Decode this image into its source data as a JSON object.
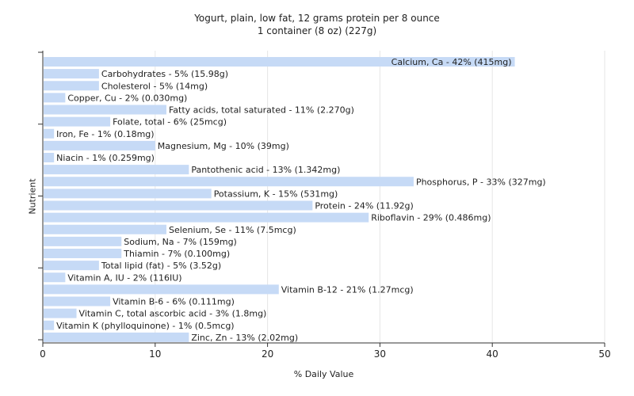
{
  "chart_data": {
    "type": "bar",
    "orientation": "horizontal",
    "title": "Yogurt, plain, low fat, 12 grams protein per 8 ounce",
    "subtitle": "1 container (8 oz) (227g)",
    "xlabel": "% Daily Value",
    "ylabel": "Nutrient",
    "xlim": [
      0,
      50
    ],
    "xticks": [
      "0",
      "10",
      "20",
      "30",
      "40",
      "50"
    ],
    "grid": true,
    "bar_color": "#c6daf6",
    "categories": [
      "Calcium, Ca",
      "Carbohydrates",
      "Cholesterol",
      "Copper, Cu",
      "Fatty acids, total saturated",
      "Folate, total",
      "Iron, Fe",
      "Magnesium, Mg",
      "Niacin",
      "Pantothenic acid",
      "Phosphorus, P",
      "Potassium, K",
      "Protein",
      "Riboflavin",
      "Selenium, Se",
      "Sodium, Na",
      "Thiamin",
      "Total lipid (fat)",
      "Vitamin A, IU",
      "Vitamin B-12",
      "Vitamin B-6",
      "Vitamin C, total ascorbic acid",
      "Vitamin K (phylloquinone)",
      "Zinc, Zn"
    ],
    "values": [
      42,
      5,
      5,
      2,
      11,
      6,
      1,
      10,
      1,
      13,
      33,
      15,
      24,
      29,
      11,
      7,
      7,
      5,
      2,
      21,
      6,
      3,
      1,
      13
    ],
    "labels": [
      "Calcium, Ca - 42% (415mg)",
      "Carbohydrates - 5% (15.98g)",
      "Cholesterol - 5% (14mg)",
      "Copper, Cu - 2% (0.030mg)",
      "Fatty acids, total saturated - 11% (2.270g)",
      "Folate, total - 6% (25mcg)",
      "Iron, Fe - 1% (0.18mg)",
      "Magnesium, Mg - 10% (39mg)",
      "Niacin - 1% (0.259mg)",
      "Pantothenic acid - 13% (1.342mg)",
      "Phosphorus, P - 33% (327mg)",
      "Potassium, K - 15% (531mg)",
      "Protein - 24% (11.92g)",
      "Riboflavin - 29% (0.486mg)",
      "Selenium, Se - 11% (7.5mcg)",
      "Sodium, Na - 7% (159mg)",
      "Thiamin - 7% (0.100mg)",
      "Total lipid (fat) - 5% (3.52g)",
      "Vitamin A, IU - 2% (116IU)",
      "Vitamin B-12 - 21% (1.27mcg)",
      "Vitamin B-6 - 6% (0.111mg)",
      "Vitamin C, total ascorbic acid - 3% (1.8mg)",
      "Vitamin K (phylloquinone) - 1% (0.5mcg)",
      "Zinc, Zn - 13% (2.02mg)"
    ]
  }
}
